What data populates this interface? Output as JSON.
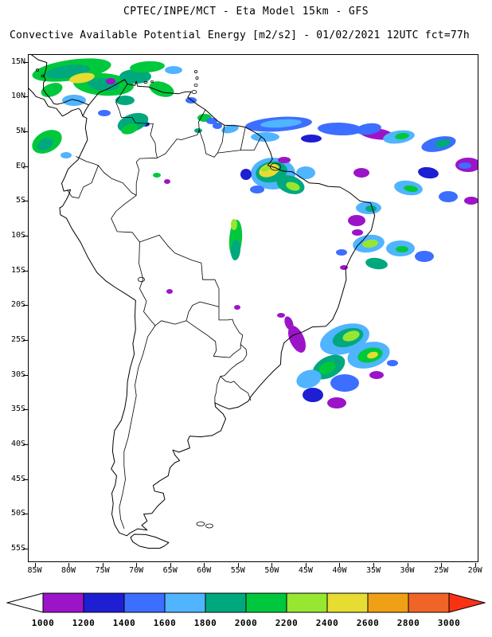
{
  "header": {
    "title_line1": "CPTEC/INPE/MCT -  Eta Model 15km - GFS",
    "title_line2": "Convective Available Potential Energy [m2/s2] - 01/02/2021 12UTC fct=77h"
  },
  "map": {
    "lat_labels": [
      "15N",
      "10N",
      "5N",
      "EQ",
      "5S",
      "10S",
      "15S",
      "20S",
      "25S",
      "30S",
      "35S",
      "40S",
      "45S",
      "50S",
      "55S"
    ],
    "lon_labels": [
      "85W",
      "80W",
      "75W",
      "70W",
      "65W",
      "60W",
      "55W",
      "50W",
      "45W",
      "40W",
      "35W",
      "30W",
      "25W",
      "20W"
    ]
  },
  "colorbar": {
    "labels": [
      "1000",
      "1200",
      "1400",
      "1600",
      "1800",
      "2000",
      "2200",
      "2400",
      "2600",
      "2800",
      "3000"
    ],
    "colors": [
      "#9c14c8",
      "#1e1ed2",
      "#3c6eff",
      "#50b4ff",
      "#00a87d",
      "#00c83c",
      "#96e632",
      "#e6dc32",
      "#f0a014",
      "#f06428"
    ],
    "left_arrow_color": "#ffffff",
    "right_arrow_color": "#fa3214",
    "outline_color": "#000000"
  },
  "cape_patches_format": "x,y,rx,ry,rotation_deg,color_index",
  "cape_patches": [
    [
      55,
      20,
      50,
      13,
      -8,
      5
    ],
    [
      50,
      22,
      28,
      8,
      -8,
      4
    ],
    [
      95,
      38,
      38,
      14,
      4,
      5
    ],
    [
      95,
      38,
      20,
      8,
      4,
      4
    ],
    [
      68,
      30,
      16,
      6,
      -10,
      7
    ],
    [
      30,
      45,
      14,
      8,
      -20,
      5
    ],
    [
      58,
      58,
      15,
      7,
      0,
      3
    ],
    [
      135,
      28,
      20,
      9,
      0,
      4
    ],
    [
      150,
      16,
      22,
      7,
      -4,
      5
    ],
    [
      183,
      20,
      11,
      5,
      0,
      3
    ],
    [
      168,
      44,
      16,
      9,
      18,
      5
    ],
    [
      122,
      58,
      12,
      6,
      0,
      4
    ],
    [
      104,
      34,
      6,
      4,
      0,
      0
    ],
    [
      205,
      58,
      7,
      4,
      0,
      2
    ],
    [
      148,
      88,
      5,
      3,
      0,
      1
    ],
    [
      132,
      86,
      20,
      11,
      -18,
      4
    ],
    [
      128,
      94,
      11,
      6,
      -18,
      5
    ],
    [
      96,
      74,
      8,
      4,
      0,
      2
    ],
    [
      24,
      110,
      20,
      13,
      -28,
      5
    ],
    [
      22,
      113,
      11,
      7,
      -28,
      4
    ],
    [
      48,
      127,
      7,
      4,
      0,
      3
    ],
    [
      222,
      80,
      9,
      5,
      0,
      5
    ],
    [
      238,
      90,
      6,
      4,
      0,
      2
    ],
    [
      214,
      96,
      5,
      3,
      0,
      4
    ],
    [
      315,
      88,
      42,
      9,
      -4,
      2
    ],
    [
      318,
      87,
      26,
      5,
      -4,
      3
    ],
    [
      392,
      94,
      28,
      8,
      2,
      2
    ],
    [
      438,
      100,
      22,
      7,
      8,
      0
    ],
    [
      298,
      104,
      18,
      6,
      0,
      3
    ],
    [
      356,
      106,
      13,
      5,
      0,
      1
    ],
    [
      254,
      94,
      11,
      5,
      -12,
      3
    ],
    [
      231,
      84,
      7,
      4,
      0,
      2
    ],
    [
      308,
      150,
      28,
      20,
      0,
      3
    ],
    [
      306,
      148,
      20,
      13,
      -10,
      4
    ],
    [
      303,
      146,
      13,
      8,
      -18,
      7
    ],
    [
      299,
      144,
      6,
      3,
      -18,
      6
    ],
    [
      330,
      164,
      18,
      11,
      18,
      4
    ],
    [
      333,
      166,
      9,
      5,
      18,
      6
    ],
    [
      349,
      149,
      12,
      8,
      0,
      3
    ],
    [
      288,
      170,
      9,
      5,
      0,
      2
    ],
    [
      274,
      151,
      7,
      7,
      0,
      1
    ],
    [
      322,
      133,
      8,
      4,
      0,
      0
    ],
    [
      428,
      94,
      16,
      7,
      -8,
      2
    ],
    [
      466,
      104,
      20,
      8,
      -8,
      3
    ],
    [
      470,
      103,
      9,
      4,
      -8,
      5
    ],
    [
      516,
      113,
      22,
      9,
      -12,
      2
    ],
    [
      521,
      112,
      10,
      5,
      -12,
      4
    ],
    [
      553,
      139,
      16,
      9,
      0,
      0
    ],
    [
      549,
      140,
      8,
      4,
      0,
      2
    ],
    [
      503,
      149,
      13,
      7,
      8,
      1
    ],
    [
      478,
      168,
      18,
      9,
      8,
      3
    ],
    [
      481,
      169,
      9,
      4,
      8,
      5
    ],
    [
      528,
      179,
      12,
      7,
      0,
      2
    ],
    [
      557,
      184,
      9,
      5,
      0,
      0
    ],
    [
      419,
      149,
      10,
      6,
      0,
      0
    ],
    [
      428,
      193,
      16,
      8,
      0,
      3
    ],
    [
      431,
      194,
      7,
      4,
      0,
      4
    ],
    [
      413,
      209,
      11,
      7,
      0,
      0
    ],
    [
      261,
      232,
      8,
      24,
      4,
      5
    ],
    [
      261,
      246,
      6,
      13,
      4,
      4
    ],
    [
      259,
      214,
      4,
      7,
      0,
      6
    ],
    [
      162,
      152,
      5,
      3,
      0,
      5
    ],
    [
      175,
      160,
      4,
      3,
      0,
      0
    ],
    [
      428,
      238,
      20,
      11,
      -8,
      3
    ],
    [
      430,
      238,
      10,
      5,
      -8,
      6
    ],
    [
      468,
      244,
      18,
      10,
      0,
      3
    ],
    [
      470,
      245,
      8,
      4,
      0,
      5
    ],
    [
      498,
      254,
      12,
      7,
      0,
      2
    ],
    [
      438,
      263,
      14,
      7,
      8,
      4
    ],
    [
      414,
      224,
      7,
      4,
      0,
      0
    ],
    [
      394,
      249,
      7,
      4,
      0,
      2
    ],
    [
      397,
      268,
      5,
      3,
      0,
      0
    ],
    [
      398,
      358,
      32,
      18,
      -18,
      3
    ],
    [
      402,
      356,
      20,
      11,
      -18,
      4
    ],
    [
      406,
      354,
      11,
      6,
      -18,
      6
    ],
    [
      428,
      378,
      27,
      16,
      -14,
      3
    ],
    [
      430,
      378,
      16,
      9,
      -14,
      5
    ],
    [
      433,
      378,
      7,
      4,
      -14,
      7
    ],
    [
      378,
      393,
      22,
      13,
      -28,
      4
    ],
    [
      376,
      394,
      11,
      7,
      -28,
      5
    ],
    [
      353,
      408,
      16,
      11,
      -18,
      3
    ],
    [
      398,
      413,
      18,
      11,
      0,
      2
    ],
    [
      358,
      428,
      13,
      9,
      0,
      1
    ],
    [
      338,
      358,
      9,
      18,
      -24,
      0
    ],
    [
      328,
      338,
      5,
      9,
      -20,
      0
    ],
    [
      388,
      438,
      12,
      7,
      0,
      0
    ],
    [
      438,
      403,
      9,
      5,
      0,
      0
    ],
    [
      458,
      388,
      7,
      4,
      0,
      2
    ],
    [
      178,
      298,
      4,
      3,
      0,
      0
    ],
    [
      263,
      318,
      4,
      3,
      0,
      0
    ],
    [
      318,
      328,
      5,
      3,
      0,
      0
    ]
  ]
}
